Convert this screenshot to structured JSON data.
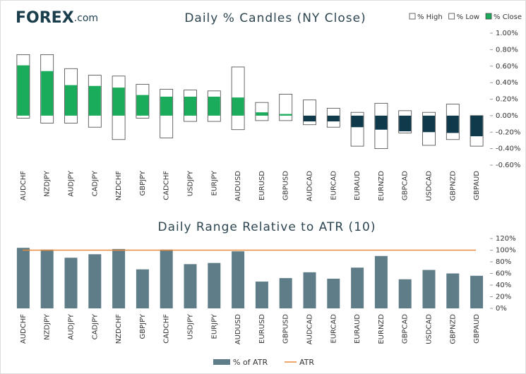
{
  "logo": {
    "name": "FOREX",
    "suffix": ".com"
  },
  "chart_data": [
    {
      "type": "range_candle",
      "title": "Daily % Candles (NY Close)",
      "categories": [
        "AUDCHF",
        "NZDJPY",
        "AUDJPY",
        "CADJPY",
        "NZDCHF",
        "GBPJPY",
        "CADCHF",
        "USDJPY",
        "EURJPY",
        "AUDUSD",
        "EURUSD",
        "GBPUSD",
        "AUDCAD",
        "EURCAD",
        "EURAUD",
        "EURNZD",
        "GBPCAD",
        "USDCAD",
        "GBPNZD",
        "GBPAUD"
      ],
      "series": [
        {
          "name": "% High",
          "color": "#ffffff",
          "values": [
            0.74,
            0.74,
            0.57,
            0.49,
            0.48,
            0.38,
            0.32,
            0.31,
            0.3,
            0.59,
            0.16,
            0.26,
            0.19,
            0.09,
            0.04,
            0.15,
            0.06,
            0.04,
            0.14,
            0.0
          ]
        },
        {
          "name": "% Low",
          "color": "#ffffff",
          "values": [
            -0.03,
            -0.09,
            -0.09,
            -0.14,
            -0.29,
            -0.03,
            -0.27,
            -0.07,
            -0.07,
            -0.17,
            -0.06,
            -0.06,
            -0.11,
            -0.14,
            -0.37,
            -0.4,
            -0.21,
            -0.36,
            -0.29,
            -0.37
          ]
        },
        {
          "name": "% Close",
          "color": "#1aac5a",
          "negative_color": "#0e3a4c",
          "values": [
            0.61,
            0.54,
            0.37,
            0.36,
            0.34,
            0.25,
            0.23,
            0.23,
            0.23,
            0.22,
            0.04,
            0.02,
            -0.07,
            -0.07,
            -0.14,
            -0.17,
            -0.19,
            -0.2,
            -0.21,
            -0.25
          ]
        }
      ],
      "ylim": [
        -0.6,
        1.0
      ],
      "yticks": [
        {
          "value": 1.0,
          "label": "1.00%"
        },
        {
          "value": 0.8,
          "label": "0.80%"
        },
        {
          "value": 0.6,
          "label": "0.60%"
        },
        {
          "value": 0.4,
          "label": "0.40%"
        },
        {
          "value": 0.2,
          "label": "0.20%"
        },
        {
          "value": 0,
          "label": "0.00%"
        },
        {
          "value": -0.2,
          "label": "-0.20%"
        },
        {
          "value": -0.4,
          "label": "-0.40%"
        },
        {
          "value": -0.6,
          "label": "-0.60%"
        }
      ],
      "legend": "top-right"
    },
    {
      "type": "bar",
      "title": "Daily Range Relative to ATR (10)",
      "categories": [
        "AUDCHF",
        "NZDJPY",
        "AUDJPY",
        "CADJPY",
        "NZDCHF",
        "GBPJPY",
        "CADCHF",
        "USDJPY",
        "EURJPY",
        "AUDUSD",
        "EURUSD",
        "GBPUSD",
        "AUDCAD",
        "EURCAD",
        "EURAUD",
        "EURNZD",
        "GBPCAD",
        "USDCAD",
        "GBPNZD",
        "GBPAUD"
      ],
      "series": [
        {
          "name": "% of ATR",
          "color": "#5f7d89",
          "values": [
            104,
            101,
            87,
            93,
            102,
            67,
            101,
            76,
            78,
            98,
            46,
            52,
            62,
            51,
            70,
            90,
            50,
            66,
            60,
            56
          ]
        }
      ],
      "reference_line": {
        "name": "ATR",
        "value": 100,
        "color": "#e8893a"
      },
      "ylim": [
        0,
        120
      ],
      "yticks": [
        {
          "value": 120,
          "label": "120%"
        },
        {
          "value": 100,
          "label": "100%"
        },
        {
          "value": 80,
          "label": "80%"
        },
        {
          "value": 60,
          "label": "60%"
        },
        {
          "value": 40,
          "label": "40%"
        },
        {
          "value": 20,
          "label": "20%"
        },
        {
          "value": 0,
          "label": "0%"
        }
      ],
      "legend": "bottom"
    }
  ]
}
